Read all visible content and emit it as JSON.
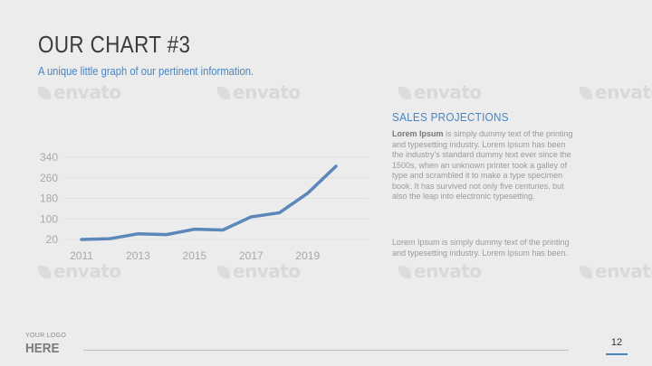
{
  "slide": {
    "title": "OUR CHART #3",
    "subtitle": "A unique little graph of our pertinent information.",
    "side_heading": "SALES PROJECTIONS",
    "para1_lead": "Lorem Ipsum",
    "para1_body": " is simply dummy text of the printing and typesetting industry. Lorem Ipsum has been the industry's standard dummy text ever since the 1500s, when an unknown printer took a galley of type and scrambled it to make a type specimen book. It has survived not only five centuries, but also the leap into electronic typesetting.",
    "para2": "Lorem Ipsum is simply dummy text of the printing and typesetting industry. Lorem Ipsum has been.",
    "logo_small": "YOUR LOGO",
    "logo_big": "HERE",
    "page_number": "12",
    "watermark_text": "envato"
  },
  "colors": {
    "accent": "#4a84c0",
    "line": "#5b87bb",
    "background": "#ececec"
  },
  "chart_data": {
    "type": "line",
    "x": [
      2011,
      2012,
      2013,
      2014,
      2015,
      2016,
      2017,
      2018,
      2019,
      2020
    ],
    "x_tick_labels": [
      "2011",
      "2013",
      "2015",
      "2017",
      "2019"
    ],
    "y_tick_labels": [
      "20",
      "100",
      "180",
      "260",
      "340"
    ],
    "series": [
      {
        "values": [
          20,
          23,
          42,
          39,
          60,
          57,
          108,
          124,
          200,
          305
        ]
      }
    ],
    "xlim": [
      2011,
      2020
    ],
    "ylim": [
      20,
      340
    ],
    "grid": true
  }
}
